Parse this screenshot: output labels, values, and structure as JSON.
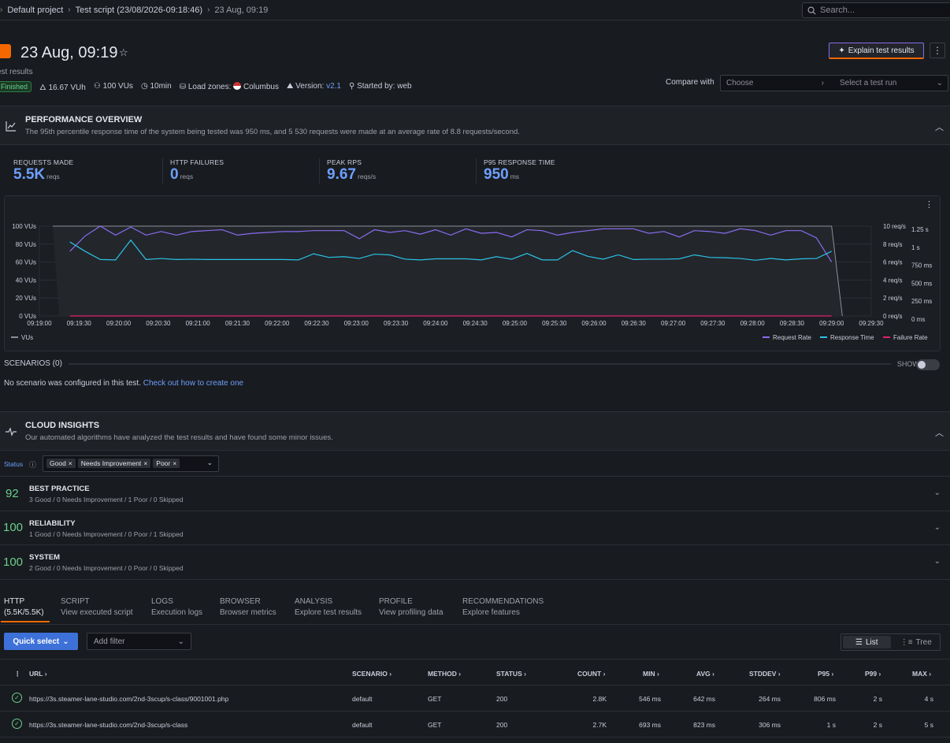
{
  "breadcrumb": {
    "project": "Default project",
    "script": "Test script (23/08/2026-09:18:46)",
    "run": "23 Aug, 09:19"
  },
  "search": {
    "placeholder": "Search..."
  },
  "header": {
    "title": "23 Aug, 09:19",
    "subtitle": "est results",
    "explain_label": "Explain test results"
  },
  "meta": {
    "status": "Finished",
    "vuh": "16.67 VUh",
    "vus": "100 VUs",
    "duration": "10min",
    "load_zones_label": "Load zones:",
    "load_zone": "Columbus",
    "version_label": "Version:",
    "version": "v2.1",
    "started_by": "Started by: web",
    "compare_label": "Compare with",
    "compare_choose": "Choose",
    "compare_select": "Select a test run"
  },
  "performance": {
    "title": "PERFORMANCE OVERVIEW",
    "description": "The 95th percentile response time of the system being tested was 950 ms, and 5 530 requests were made at an average rate of 8.8 requests/second.",
    "stats": [
      {
        "label": "REQUESTS MADE",
        "value": "5.5K",
        "unit": "reqs"
      },
      {
        "label": "HTTP FAILURES",
        "value": "0",
        "unit": "reqs"
      },
      {
        "label": "PEAK RPS",
        "value": "9.67",
        "unit": "reqs/s"
      },
      {
        "label": "P95 RESPONSE TIME",
        "value": "950",
        "unit": "ms"
      }
    ]
  },
  "chart_data": {
    "type": "line",
    "x": [
      "09:19:00",
      "09:19:30",
      "09:20:00",
      "09:20:30",
      "09:21:00",
      "09:21:30",
      "09:22:00",
      "09:22:30",
      "09:23:00",
      "09:23:30",
      "09:24:00",
      "09:24:30",
      "09:25:00",
      "09:25:30",
      "09:26:00",
      "09:26:30",
      "09:27:00",
      "09:27:30",
      "09:28:00",
      "09:28:30",
      "09:29:00",
      "09:29:30"
    ],
    "y_left_ticks": [
      "100 VUs",
      "80 VUs",
      "60 VUs",
      "40 VUs",
      "20 VUs",
      "0 VUs"
    ],
    "y_right_rate_ticks": [
      "10 req/s",
      "8 req/s",
      "6 req/s",
      "4 req/s",
      "2 req/s",
      "0 req/s"
    ],
    "y_right_time_ticks": [
      "1.25 s",
      "1 s",
      "750 ms",
      "500 ms",
      "250 ms",
      "0 ms"
    ],
    "vus_range": [
      0,
      100
    ],
    "rate_range": [
      0,
      10
    ],
    "time_range_ms": [
      0,
      1250
    ],
    "series": [
      {
        "name": "VUs",
        "color": "#8e8e9a",
        "unit": "VUs",
        "points": [
          [
            0.5,
            100
          ],
          [
            29.6,
            100
          ],
          [
            30.0,
            0
          ]
        ]
      },
      {
        "name": "Request Rate",
        "color": "#8a6cf0",
        "unit": "req/s",
        "points": [
          [
            1,
            7.2
          ],
          [
            1.5,
            8.9
          ],
          [
            2,
            10.0
          ],
          [
            2.5,
            9.0
          ],
          [
            3,
            9.9
          ],
          [
            3.5,
            9.0
          ],
          [
            4,
            9.4
          ],
          [
            4.5,
            9.0
          ],
          [
            5,
            9.4
          ],
          [
            5.5,
            9.5
          ],
          [
            6,
            9.6
          ],
          [
            6.5,
            9.0
          ],
          [
            7,
            9.2
          ],
          [
            7.5,
            9.3
          ],
          [
            8,
            9.4
          ],
          [
            8.5,
            9.4
          ],
          [
            9,
            9.5
          ],
          [
            9.5,
            9.5
          ],
          [
            10,
            9.5
          ],
          [
            10.5,
            8.6
          ],
          [
            11,
            9.6
          ],
          [
            11.5,
            9.3
          ],
          [
            12,
            9.5
          ],
          [
            12.5,
            9.1
          ],
          [
            13,
            9.6
          ],
          [
            13.5,
            9.0
          ],
          [
            14,
            9.7
          ],
          [
            14.5,
            9.2
          ],
          [
            15,
            9.3
          ],
          [
            15.5,
            8.8
          ],
          [
            16,
            9.6
          ],
          [
            16.5,
            9.5
          ],
          [
            17,
            9.0
          ],
          [
            17.5,
            9.3
          ],
          [
            18,
            9.5
          ],
          [
            18.5,
            9.7
          ],
          [
            19,
            9.7
          ],
          [
            19.5,
            9.7
          ],
          [
            20,
            9.2
          ],
          [
            20.5,
            9.4
          ],
          [
            21,
            8.8
          ],
          [
            21.5,
            9.5
          ],
          [
            22,
            9.4
          ],
          [
            22.5,
            9.2
          ],
          [
            23,
            9.7
          ],
          [
            23.5,
            9.5
          ],
          [
            24,
            9.0
          ],
          [
            24.5,
            9.5
          ],
          [
            25,
            9.5
          ],
          [
            25.5,
            8.7
          ],
          [
            26,
            6.0
          ]
        ]
      },
      {
        "name": "Response Time",
        "color": "#2ac3e8",
        "unit": "ms",
        "points": [
          [
            1,
            1030
          ],
          [
            1.5,
            900
          ],
          [
            2,
            785
          ],
          [
            2.5,
            780
          ],
          [
            3,
            1055
          ],
          [
            3.5,
            785
          ],
          [
            4,
            800
          ],
          [
            4.5,
            785
          ],
          [
            5,
            790
          ],
          [
            5.5,
            785
          ],
          [
            6,
            785
          ],
          [
            6.5,
            785
          ],
          [
            7,
            785
          ],
          [
            7.5,
            785
          ],
          [
            8,
            785
          ],
          [
            8.5,
            780
          ],
          [
            9,
            865
          ],
          [
            9.5,
            815
          ],
          [
            10,
            825
          ],
          [
            10.5,
            800
          ],
          [
            11,
            860
          ],
          [
            11.5,
            850
          ],
          [
            12,
            790
          ],
          [
            12.5,
            780
          ],
          [
            13,
            795
          ],
          [
            13.5,
            795
          ],
          [
            14,
            795
          ],
          [
            14.5,
            780
          ],
          [
            15,
            825
          ],
          [
            15.5,
            790
          ],
          [
            16,
            870
          ],
          [
            16.5,
            780
          ],
          [
            17,
            780
          ],
          [
            17.5,
            910
          ],
          [
            18,
            830
          ],
          [
            18.5,
            790
          ],
          [
            19,
            850
          ],
          [
            19.5,
            785
          ],
          [
            20,
            790
          ],
          [
            20.5,
            790
          ],
          [
            21,
            795
          ],
          [
            21.5,
            850
          ],
          [
            22,
            815
          ],
          [
            22.5,
            810
          ],
          [
            23,
            800
          ],
          [
            23.5,
            775
          ],
          [
            24,
            800
          ],
          [
            24.5,
            780
          ],
          [
            25,
            795
          ],
          [
            25.5,
            800
          ],
          [
            26,
            900
          ]
        ]
      },
      {
        "name": "Failure Rate",
        "color": "#e0226e",
        "unit": "req/s",
        "points": [
          [
            1,
            0
          ],
          [
            26,
            0
          ]
        ]
      }
    ],
    "legend": [
      "VUs",
      "Request Rate",
      "Response Time",
      "Failure Rate"
    ],
    "grid": true
  },
  "scenarios": {
    "title": "SCENARIOS (0)",
    "show_label": "SHOW",
    "empty_text": "No scenario was configured in this test.",
    "link_text": "Check out how to create one"
  },
  "insights": {
    "title": "CLOUD INSIGHTS",
    "description": "Our automated algorithms have analyzed the test results and have found some minor issues.",
    "status_label": "Status",
    "chips": [
      "Good",
      "Needs Improvement",
      "Poor"
    ],
    "items": [
      {
        "score": "92",
        "name": "BEST PRACTICE",
        "detail": "3 Good / 0 Needs Improvement / 1 Poor / 0 Skipped"
      },
      {
        "score": "100",
        "name": "RELIABILITY",
        "detail": "1 Good / 0 Needs Improvement / 0 Poor / 1 Skipped"
      },
      {
        "score": "100",
        "name": "SYSTEM",
        "detail": "2 Good / 0 Needs Improvement / 0 Poor / 0 Skipped"
      }
    ]
  },
  "tabs": [
    {
      "label": "HTTP",
      "sub": "(5.5K/5.5K)"
    },
    {
      "label": "SCRIPT",
      "sub": "View executed script"
    },
    {
      "label": "LOGS",
      "sub": "Execution logs"
    },
    {
      "label": "BROWSER",
      "sub": "Browser metrics"
    },
    {
      "label": "ANALYSIS",
      "sub": "Explore test results"
    },
    {
      "label": "PROFILE",
      "sub": "View profiling data"
    },
    {
      "label": "RECOMMENDATIONS",
      "sub": "Explore features"
    }
  ],
  "toolbar": {
    "quick_select": "Quick select",
    "add_filter": "Add filter",
    "list": "List",
    "tree": "Tree"
  },
  "table": {
    "headers": [
      "URL",
      "SCENARIO",
      "METHOD",
      "STATUS",
      "COUNT",
      "MIN",
      "AVG",
      "STDDEV",
      "P95",
      "P99",
      "MAX"
    ],
    "rows": [
      [
        "https://3s.steamer-lane-studio.com/2nd-3scup/s-class/9001001.php",
        "default",
        "GET",
        "200",
        "2.8K",
        "546 ms",
        "642 ms",
        "264 ms",
        "806 ms",
        "2 s",
        "4 s"
      ],
      [
        "https://3s.steamer-lane-studio.com/2nd-3scup/s-class",
        "default",
        "GET",
        "200",
        "2.7K",
        "693 ms",
        "823 ms",
        "306 ms",
        "1 s",
        "2 s",
        "5 s"
      ]
    ]
  }
}
